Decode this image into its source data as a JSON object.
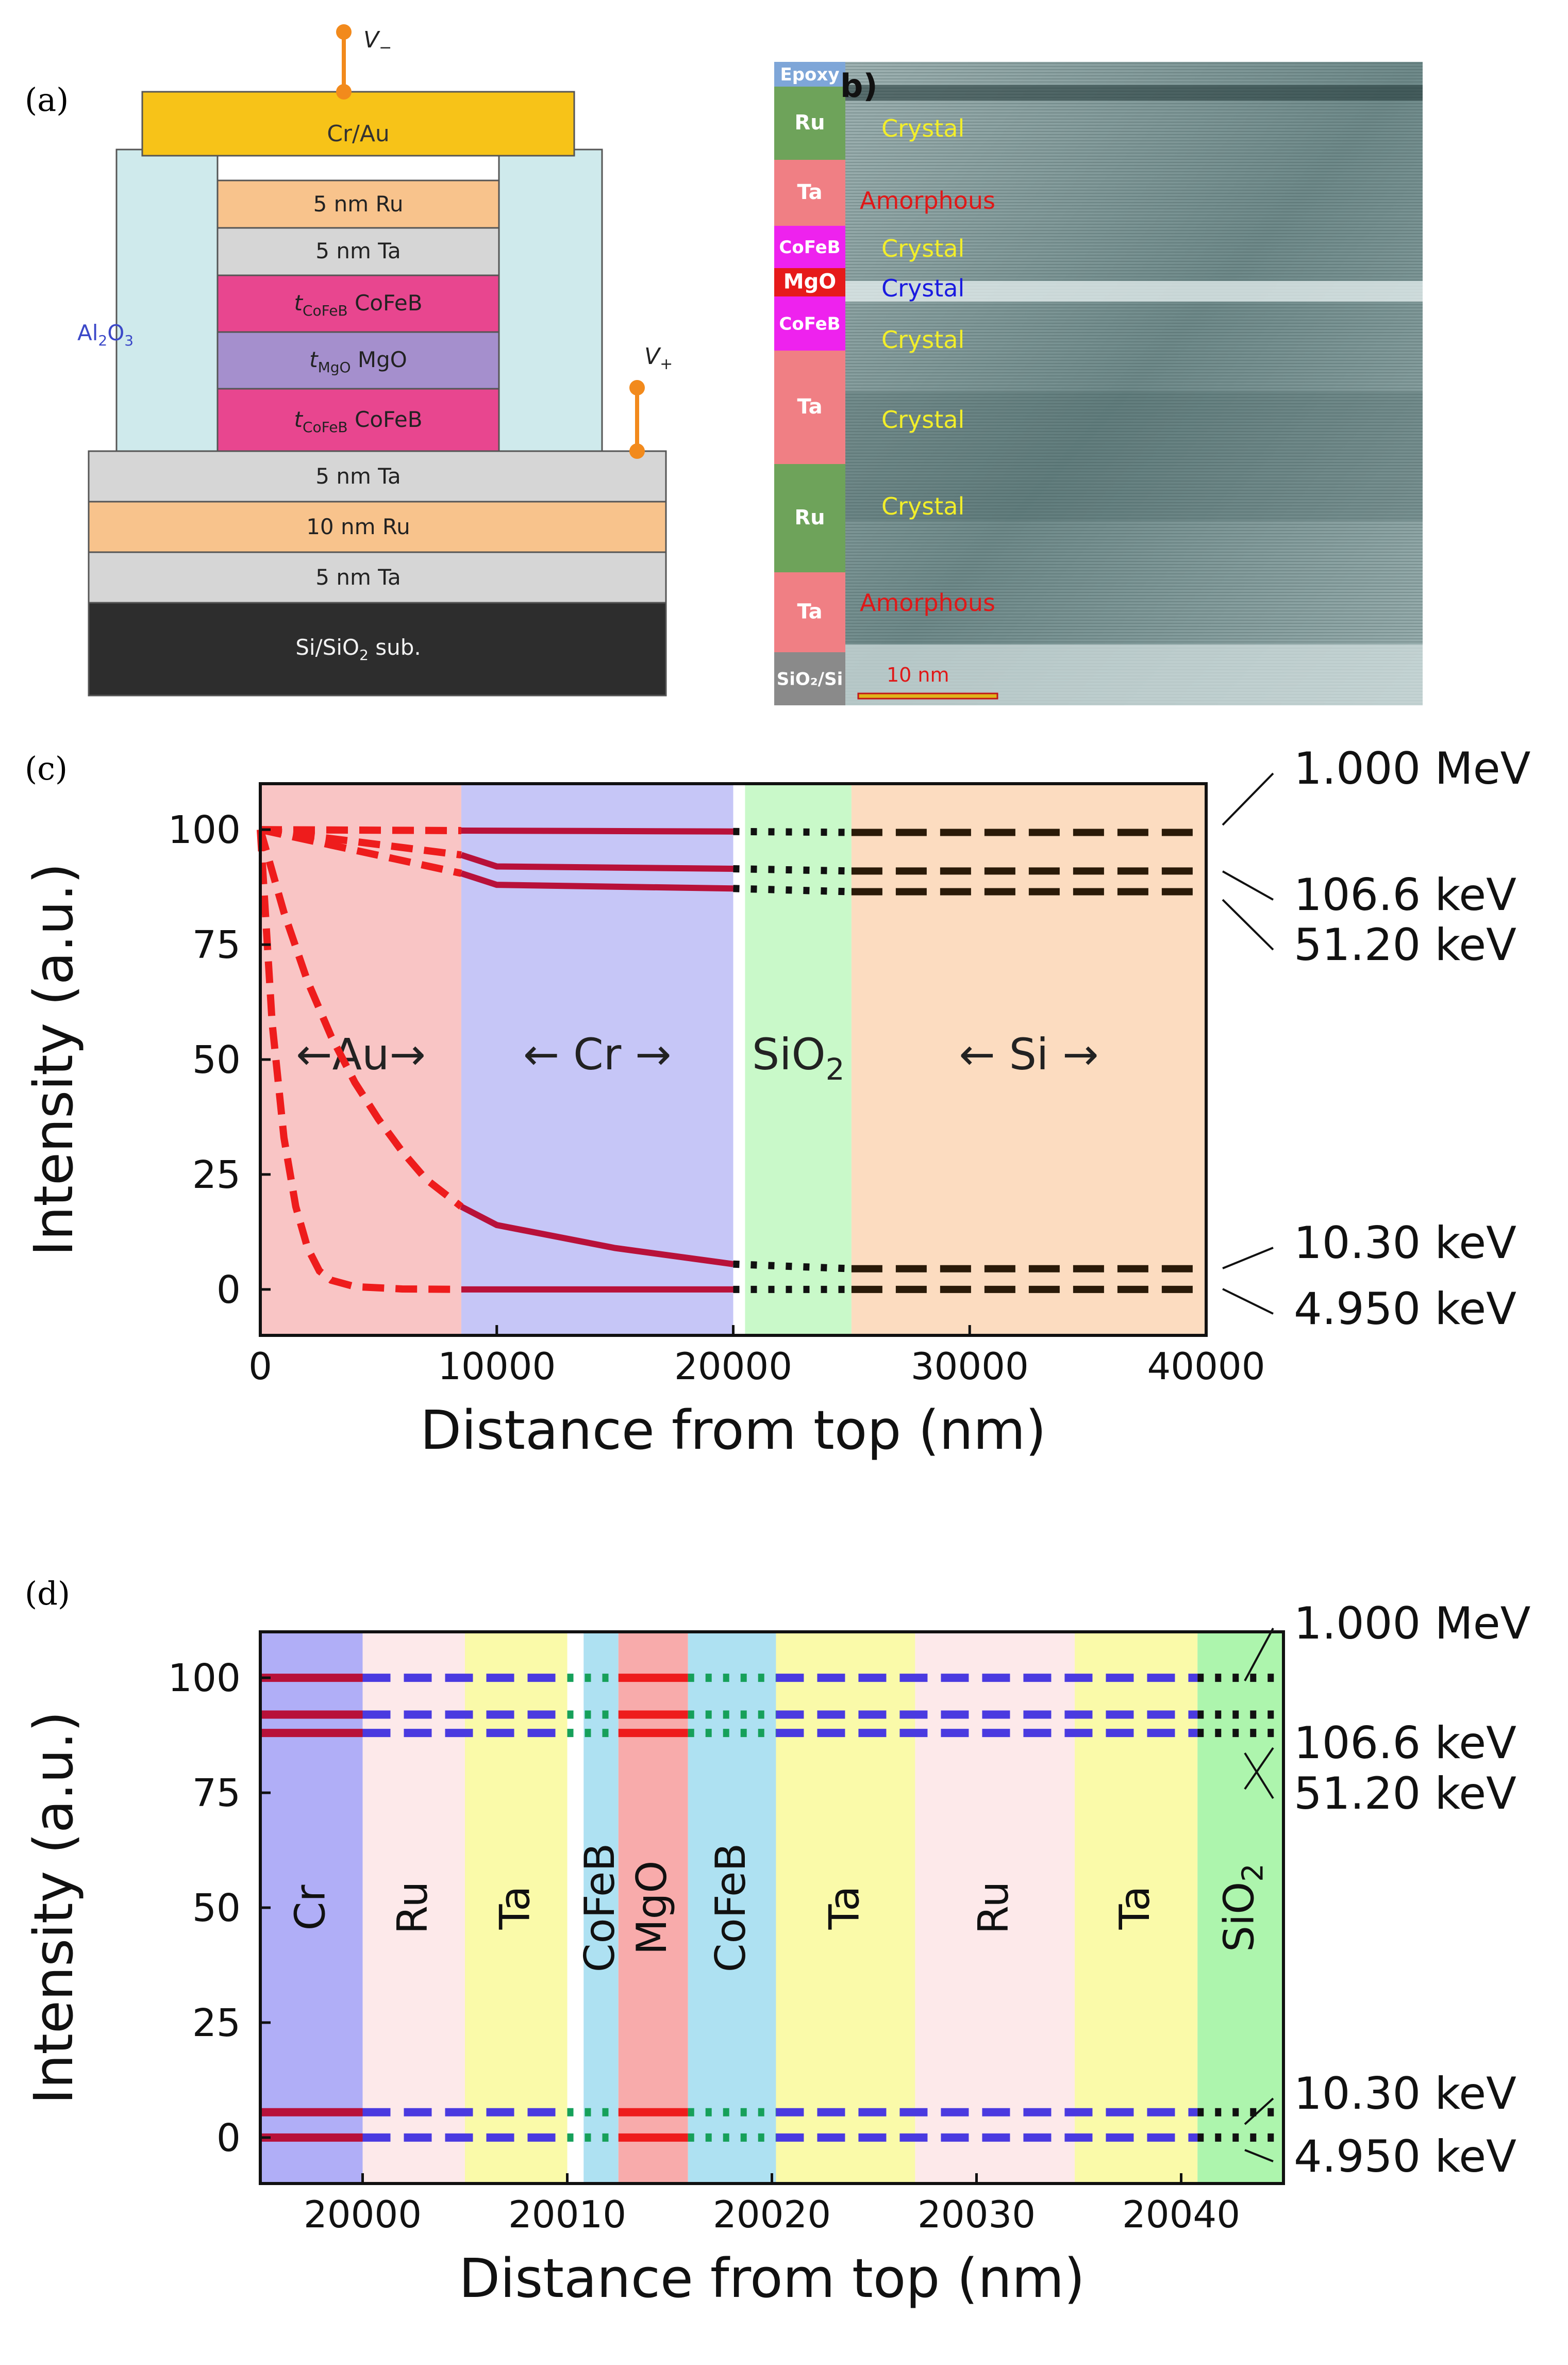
{
  "panel_labels": {
    "a": "(a)",
    "b": "b)",
    "c": "(c)",
    "d": "(d)"
  },
  "panel_a": {
    "v_minus": "V",
    "v_minus_sub": "−",
    "v_plus": "V",
    "v_plus_sub": "+",
    "al2o3": "Al",
    "al2o3_sub1": "2",
    "al2o3_o": "O",
    "al2o3_sub2": "3",
    "layers": [
      {
        "label": "Cr/Au",
        "color": "#f7c318"
      },
      {
        "label": "5 nm Ru",
        "color": "#f8c38c"
      },
      {
        "label": "5 nm Ta",
        "color": "#d6d6d6"
      },
      {
        "label": "t",
        "sub": "CoFeB",
        "suffix": " CoFeB",
        "color": "#e8468f"
      },
      {
        "label": "t",
        "sub": "MgO",
        "suffix": " MgO",
        "color": "#a58fcd"
      },
      {
        "label": "t",
        "sub": "CoFeB",
        "suffix": " CoFeB",
        "color": "#e8468f"
      },
      {
        "label": "5 nm Ta",
        "color": "#d6d6d6"
      },
      {
        "label": "10 nm Ru",
        "color": "#f8c38c"
      },
      {
        "label": "5 nm Ta",
        "color": "#d6d6d6"
      },
      {
        "label": "Si/SiO",
        "sub": "2",
        "suffix": " sub.",
        "color": "#2d2d2d"
      }
    ]
  },
  "panel_b": {
    "scale_label": "10 nm",
    "strip": [
      {
        "label": "Epoxy",
        "color": "#7ea6d8"
      },
      {
        "label": "Ru",
        "color": "#6ea35a"
      },
      {
        "label": "Ta",
        "color": "#f07f84"
      },
      {
        "label": "CoFeB",
        "color": "#ee22ee"
      },
      {
        "label": "MgO",
        "color": "#e61a1a"
      },
      {
        "label": "CoFeB",
        "color": "#ee22ee"
      },
      {
        "label": "Ta",
        "color": "#f07f84"
      },
      {
        "label": "Ru",
        "color": "#6ea35a"
      },
      {
        "label": "Ta",
        "color": "#f07f84"
      },
      {
        "label": "SiO₂/Si",
        "color": "#8a8a8a"
      }
    ],
    "annotations": [
      {
        "text": "Crystal",
        "color": "#f2ee2a"
      },
      {
        "text": "Amorphous",
        "color": "#e01818"
      },
      {
        "text": "Crystal",
        "color": "#f2ee2a"
      },
      {
        "text": "Crystal",
        "color": "#1a1ae0"
      },
      {
        "text": "Crystal",
        "color": "#f2ee2a"
      },
      {
        "text": "Crystal",
        "color": "#f2ee2a"
      },
      {
        "text": "Crystal",
        "color": "#f2ee2a"
      },
      {
        "text": "Amorphous",
        "color": "#e01818"
      }
    ]
  },
  "chart_data": [
    {
      "id": "c",
      "type": "line",
      "xlabel": "Distance from top (nm)",
      "ylabel": "Intensity (a.u.)",
      "xlim": [
        0,
        40000
      ],
      "ylim": [
        -10,
        110
      ],
      "xticks": [
        0,
        10000,
        20000,
        30000,
        40000
      ],
      "yticks": [
        0,
        25,
        50,
        75,
        100
      ],
      "regions": [
        {
          "label": "←Au→",
          "from": 0,
          "to": 8500,
          "color": "#f9c5c5"
        },
        {
          "label": "←   Cr   →",
          "from": 8500,
          "to": 20000,
          "color": "#c6c6f7"
        },
        {
          "label": "SiO",
          "sub": "2",
          "from": 20500,
          "to": 25000,
          "color": "#c9f9c9"
        },
        {
          "label": "←      Si      →",
          "from": 25000,
          "to": 40000,
          "color": "#fcdcc0"
        }
      ],
      "series": [
        {
          "name": "1.000 MeV",
          "points": [
            [
              0,
              100
            ],
            [
              8500,
              99.8
            ],
            [
              20000,
              99.6
            ],
            [
              40000,
              99.4
            ]
          ]
        },
        {
          "name": "106.6 keV",
          "points": [
            [
              0,
              100
            ],
            [
              8500,
              94.5
            ],
            [
              10000,
              92
            ],
            [
              20000,
              91.5
            ],
            [
              40000,
              91
            ]
          ]
        },
        {
          "name": "51.20 keV",
          "points": [
            [
              0,
              100
            ],
            [
              8500,
              90.5
            ],
            [
              10000,
              88
            ],
            [
              20000,
              87.2
            ],
            [
              40000,
              86.5
            ]
          ]
        },
        {
          "name": "10.30 keV",
          "points": [
            [
              0,
              100
            ],
            [
              1000,
              82
            ],
            [
              2000,
              67
            ],
            [
              3000,
              55
            ],
            [
              4000,
              45
            ],
            [
              5000,
              37
            ],
            [
              6000,
              30
            ],
            [
              7000,
              24
            ],
            [
              8500,
              18
            ],
            [
              10000,
              14
            ],
            [
              15000,
              9
            ],
            [
              20000,
              5.5
            ],
            [
              40000,
              4.5
            ]
          ]
        },
        {
          "name": "4.950 keV",
          "points": [
            [
              0,
              100
            ],
            [
              500,
              58
            ],
            [
              1000,
              33
            ],
            [
              1500,
              18
            ],
            [
              2000,
              9
            ],
            [
              2500,
              4
            ],
            [
              3000,
              2
            ],
            [
              4000,
              0.6
            ],
            [
              6000,
              0.1
            ],
            [
              8500,
              0
            ],
            [
              20000,
              0
            ],
            [
              40000,
              0
            ]
          ]
        }
      ],
      "line_labels": [
        "1.000 MeV",
        "106.6 keV",
        "51.20 keV",
        "10.30 keV",
        "4.950 keV"
      ]
    },
    {
      "id": "d",
      "type": "line",
      "xlabel": "Distance from top (nm)",
      "ylabel": "Intensity (a.u.)",
      "xlim": [
        19995,
        20045
      ],
      "ylim": [
        -10,
        110
      ],
      "xticks": [
        20000,
        20010,
        20020,
        20030,
        20040
      ],
      "yticks": [
        0,
        25,
        50,
        75,
        100
      ],
      "regions": [
        {
          "label": "Cr",
          "from": 19995,
          "to": 20000,
          "color": "#b0aef7"
        },
        {
          "label": "Ru",
          "from": 20000,
          "to": 20005,
          "color": "#fde9ea"
        },
        {
          "label": "Ta",
          "from": 20005,
          "to": 20010,
          "color": "#fafaa9"
        },
        {
          "label": "CoFeB",
          "from": 20010.8,
          "to": 20012.5,
          "color": "#aee1f2"
        },
        {
          "label": "MgO",
          "from": 20012.5,
          "to": 20015.9,
          "color": "#f8abab"
        },
        {
          "label": "CoFeB",
          "from": 20015.9,
          "to": 20020.2,
          "color": "#aee1f2"
        },
        {
          "label": "Ta",
          "from": 20020.2,
          "to": 20027,
          "color": "#fafaa9"
        },
        {
          "label": "Ru",
          "from": 20027,
          "to": 20034.8,
          "color": "#fde9ea"
        },
        {
          "label": "Ta",
          "from": 20034.8,
          "to": 20040.8,
          "color": "#fafaa9"
        },
        {
          "label": "SiO",
          "sub": "2",
          "from": 20040.8,
          "to": 20045,
          "color": "#adf5ad"
        }
      ],
      "series": [
        {
          "name": "1.000 MeV",
          "y": 100
        },
        {
          "name": "106.6 keV",
          "y": 92
        },
        {
          "name": "51.20 keV",
          "y": 88
        },
        {
          "name": "10.30 keV",
          "y": 5.5
        },
        {
          "name": "4.950 keV",
          "y": 0
        }
      ],
      "line_labels": [
        "1.000 MeV",
        "106.6 keV",
        "51.20 keV",
        "10.30 keV",
        "4.950 keV"
      ]
    }
  ]
}
